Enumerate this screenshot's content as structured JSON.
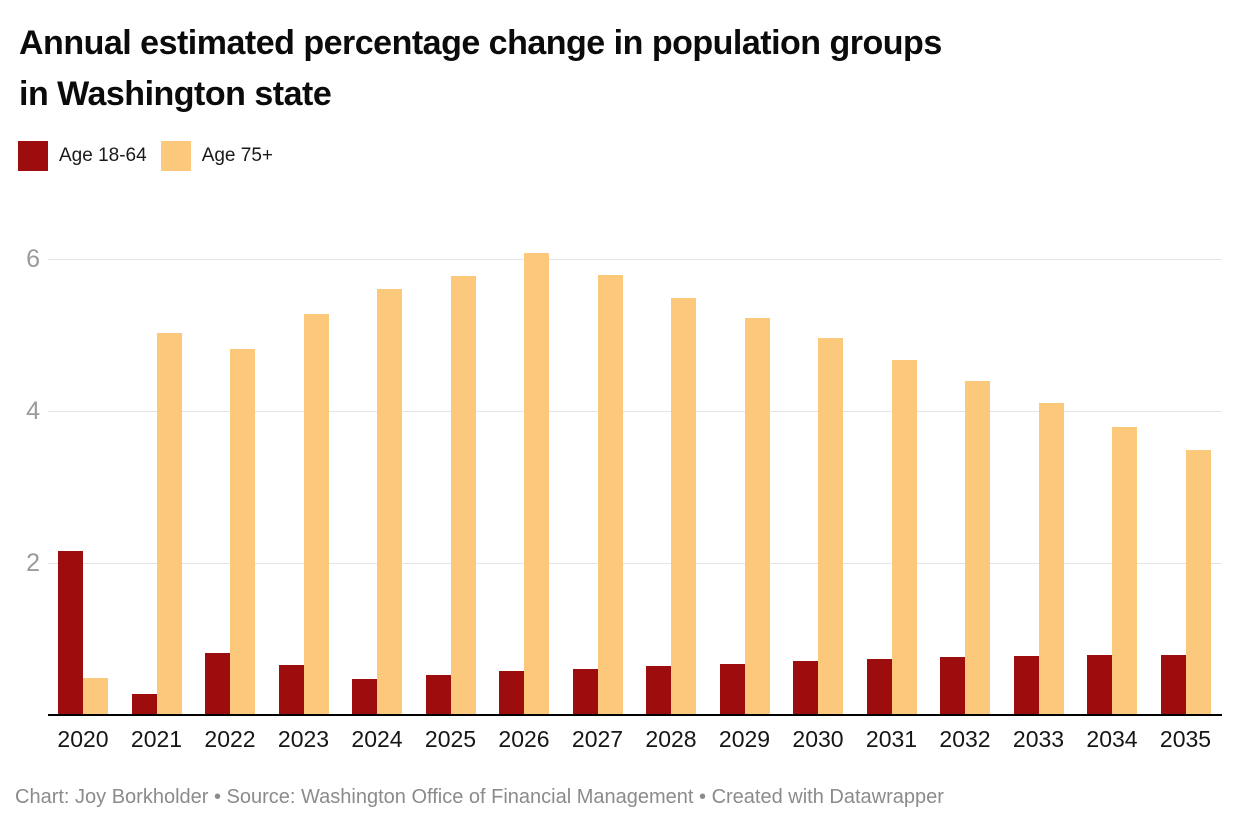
{
  "title_lines": [
    "Annual estimated percentage change in population groups",
    "in Washington state"
  ],
  "legend": {
    "items": [
      {
        "label": "Age 18-64",
        "color": "#9e0d0e"
      },
      {
        "label": "Age 75+",
        "color": "#fbc87c"
      }
    ]
  },
  "chart_data": {
    "type": "bar",
    "title": "Annual estimated percentage change in population groups in Washington state",
    "xlabel": "",
    "ylabel": "",
    "categories": [
      "2020",
      "2021",
      "2022",
      "2023",
      "2024",
      "2025",
      "2026",
      "2027",
      "2028",
      "2029",
      "2030",
      "2031",
      "2032",
      "2033",
      "2034",
      "2035"
    ],
    "series": [
      {
        "name": "Age 18-64",
        "color": "#9e0d0e",
        "values": [
          2.16,
          0.28,
          0.82,
          0.66,
          0.47,
          0.52,
          0.58,
          0.61,
          0.64,
          0.67,
          0.71,
          0.74,
          0.76,
          0.77,
          0.79,
          0.79
        ]
      },
      {
        "name": "Age 75+",
        "color": "#fbc87c",
        "values": [
          0.49,
          5.03,
          4.81,
          5.27,
          5.6,
          5.78,
          6.08,
          5.79,
          5.49,
          5.23,
          4.96,
          4.67,
          4.4,
          4.1,
          3.79,
          3.49
        ]
      }
    ],
    "yticks": [
      2,
      4,
      6
    ],
    "ylim": [
      0,
      6.3
    ],
    "grid": true,
    "legend_position": "top-left",
    "colors": {
      "background": "#ffffff",
      "gridline": "#e4e4e4",
      "axis": "#000000",
      "y_tick_text": "#9a9a9a",
      "x_tick_text": "#161616"
    }
  },
  "footer": {
    "text": "Chart: Joy Borkholder • Source: Washington Office of Financial Management • Created with Datawrapper"
  }
}
